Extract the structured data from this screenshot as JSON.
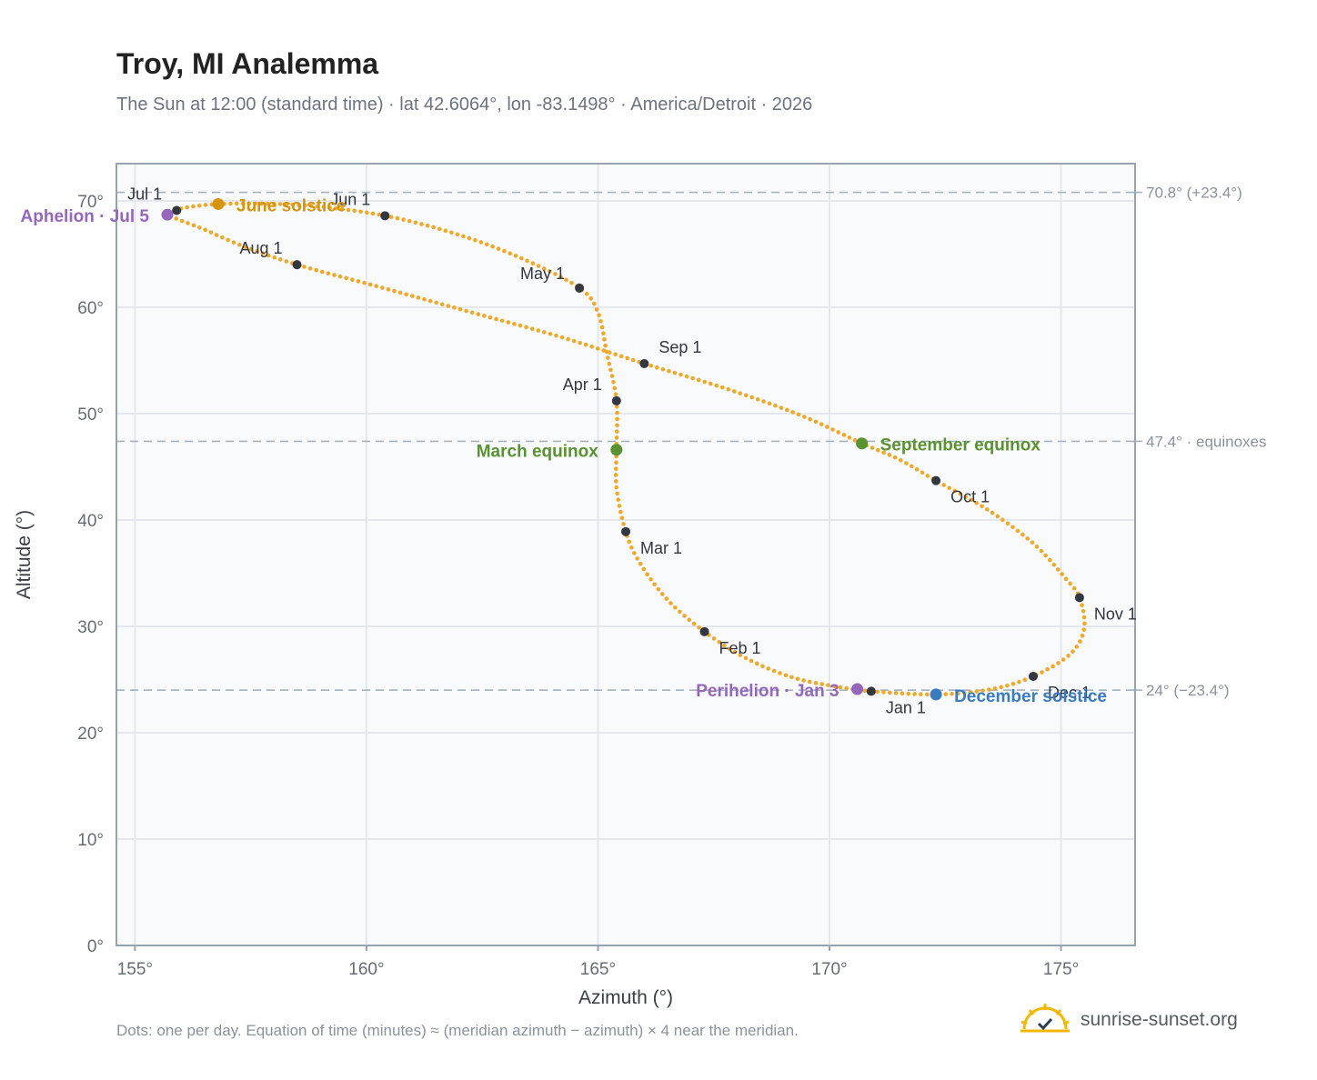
{
  "header": {
    "title": "Troy, MI Analemma",
    "subtitle": "The Sun at 12:00 (standard time) · lat 42.6064°, lon -83.1498° · America/Detroit · 2026"
  },
  "footer": {
    "note": "Dots: one per day. Equation of time (minutes) ≈ (meridian azimuth − azimuth) × 4 near the meridian.",
    "brand": "sunrise-sunset.org"
  },
  "colors": {
    "curve": "#f0a82a",
    "month_marker": "#333740",
    "solstice_june": "#d4950e",
    "solstice_december": "#3a7bbf",
    "equinox": "#5a9131",
    "apsis": "#9467bd",
    "reference_line": "#a6b2bd",
    "plot_bg": "#f8fafc",
    "grid": "#e4e8ed",
    "axis": "#98a3b0"
  },
  "chart_data": {
    "type": "scatter",
    "title": "Troy, MI Analemma",
    "xlabel": "Azimuth (°)",
    "ylabel": "Altitude (°)",
    "xlim": [
      154.6,
      176.6
    ],
    "ylim": [
      0,
      73.5
    ],
    "x_ticks": [
      155,
      160,
      165,
      170,
      175
    ],
    "y_ticks": [
      0,
      10,
      20,
      30,
      40,
      50,
      60,
      70
    ],
    "x_tick_labels": [
      "155°",
      "160°",
      "165°",
      "170°",
      "175°"
    ],
    "y_tick_labels": [
      "0°",
      "10°",
      "20°",
      "30°",
      "40°",
      "50°",
      "60°",
      "70°"
    ],
    "grid": true,
    "legend": "none",
    "reference_lines": [
      {
        "y": 70.8,
        "label": "70.8° (+23.4°)"
      },
      {
        "y": 47.4,
        "label": "47.4° · equinoxes"
      },
      {
        "y": 24.0,
        "label": "24° (−23.4°)"
      }
    ],
    "curve_points": [
      [
        170.9,
        23.9
      ],
      [
        170.2,
        24.3
      ],
      [
        169.2,
        25.2
      ],
      [
        168.2,
        27.0
      ],
      [
        167.3,
        29.5
      ],
      [
        166.5,
        32.5
      ],
      [
        165.9,
        36.0
      ],
      [
        165.6,
        38.9
      ],
      [
        165.4,
        43.0
      ],
      [
        165.4,
        46.6
      ],
      [
        165.4,
        51.2
      ],
      [
        165.2,
        55.5
      ],
      [
        165.0,
        59.5
      ],
      [
        164.6,
        61.8
      ],
      [
        163.4,
        64.5
      ],
      [
        162.0,
        66.8
      ],
      [
        160.4,
        68.6
      ],
      [
        158.6,
        69.6
      ],
      [
        156.8,
        69.7
      ],
      [
        155.8,
        69.1
      ],
      [
        155.7,
        68.7
      ],
      [
        156.5,
        67.3
      ],
      [
        157.3,
        65.8
      ],
      [
        158.5,
        64.0
      ],
      [
        160.2,
        62.0
      ],
      [
        162.2,
        59.6
      ],
      [
        164.2,
        57.2
      ],
      [
        166.0,
        54.7
      ],
      [
        167.8,
        52.3
      ],
      [
        169.4,
        49.8
      ],
      [
        170.7,
        47.2
      ],
      [
        171.5,
        45.7
      ],
      [
        172.3,
        43.7
      ],
      [
        173.4,
        41.0
      ],
      [
        174.4,
        37.8
      ],
      [
        175.1,
        34.5
      ],
      [
        175.4,
        32.7
      ],
      [
        175.5,
        29.8
      ],
      [
        175.2,
        27.4
      ],
      [
        174.4,
        25.3
      ],
      [
        173.5,
        24.1
      ],
      [
        172.3,
        23.6
      ],
      [
        170.9,
        23.9
      ]
    ],
    "month_markers": [
      {
        "label": "Jan 1",
        "az": 170.9,
        "alt": 23.9
      },
      {
        "label": "Feb 1",
        "az": 167.3,
        "alt": 29.5
      },
      {
        "label": "Mar 1",
        "az": 165.6,
        "alt": 38.9
      },
      {
        "label": "Apr 1",
        "az": 165.4,
        "alt": 51.2
      },
      {
        "label": "May 1",
        "az": 164.6,
        "alt": 61.8
      },
      {
        "label": "Jun 1",
        "az": 160.4,
        "alt": 68.6
      },
      {
        "label": "Jul 1",
        "az": 155.9,
        "alt": 69.1
      },
      {
        "label": "Aug 1",
        "az": 158.5,
        "alt": 64.0
      },
      {
        "label": "Sep 1",
        "az": 166.0,
        "alt": 54.7
      },
      {
        "label": "Oct 1",
        "az": 172.3,
        "alt": 43.7
      },
      {
        "label": "Nov 1",
        "az": 175.4,
        "alt": 32.7
      },
      {
        "label": "Dec 1",
        "az": 174.4,
        "alt": 25.3
      }
    ],
    "events": [
      {
        "label": "June solstice",
        "az": 156.8,
        "alt": 69.7,
        "kind": "solstice_june"
      },
      {
        "label": "December solstice",
        "az": 172.3,
        "alt": 23.6,
        "kind": "solstice_december"
      },
      {
        "label": "March equinox",
        "az": 165.4,
        "alt": 46.6,
        "kind": "equinox"
      },
      {
        "label": "September equinox",
        "az": 170.7,
        "alt": 47.2,
        "kind": "equinox"
      },
      {
        "label": "Aphelion · Jul 5",
        "az": 155.7,
        "alt": 68.7,
        "kind": "apsis"
      },
      {
        "label": "Perihelion · Jan 3",
        "az": 170.6,
        "alt": 24.1,
        "kind": "apsis"
      }
    ]
  }
}
